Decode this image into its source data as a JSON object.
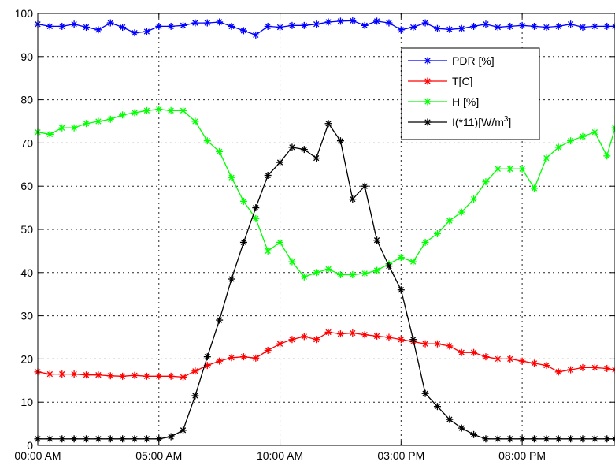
{
  "chart_data": {
    "type": "line",
    "title": "",
    "xlabel": "",
    "ylabel": "",
    "ylim": [
      0,
      100
    ],
    "yticks": [
      0,
      10,
      20,
      30,
      40,
      50,
      60,
      70,
      80,
      90,
      100
    ],
    "ytick_labels": [
      "0",
      "10",
      "20",
      "30",
      "40",
      "50",
      "60",
      "70",
      "80",
      "90",
      "100"
    ],
    "xlim": [
      0,
      1430
    ],
    "xticks": [
      0,
      300,
      600,
      900,
      1200
    ],
    "xtick_labels": [
      "00:00 AM",
      "05:00 AM",
      "10:00 AM",
      "03:00 PM",
      "08:00 PM"
    ],
    "grid": true,
    "legend_position": "upper-right",
    "series": [
      {
        "name": "PDR [%]",
        "color": "#0000ff",
        "marker": "*",
        "x": [
          0,
          30,
          60,
          90,
          120,
          150,
          180,
          210,
          240,
          270,
          300,
          330,
          360,
          390,
          420,
          450,
          480,
          510,
          540,
          570,
          600,
          630,
          660,
          690,
          720,
          750,
          780,
          810,
          840,
          870,
          900,
          930,
          960,
          990,
          1020,
          1050,
          1080,
          1110,
          1140,
          1170,
          1200,
          1230,
          1260,
          1290,
          1320,
          1350,
          1380,
          1410,
          1430
        ],
        "values": [
          97.5,
          97,
          97,
          97.5,
          96.8,
          96.2,
          97.8,
          96.8,
          95.5,
          95.8,
          97,
          97,
          97.2,
          97.8,
          97.8,
          98,
          97,
          96,
          95,
          97,
          96.8,
          97.2,
          97.2,
          97.5,
          98,
          98.2,
          98.3,
          97.2,
          98.2,
          97.8,
          96.2,
          96.8,
          97.8,
          96.5,
          96.3,
          96.5,
          97,
          97.5,
          96.8,
          97,
          97.2,
          97,
          96.8,
          97,
          97.5,
          96.8,
          97,
          97,
          97
        ],
        "x_note": "minutes since midnight"
      },
      {
        "name": "T[C]",
        "color": "#ff0000",
        "marker": "*",
        "x": [
          0,
          30,
          60,
          90,
          120,
          150,
          180,
          210,
          240,
          270,
          300,
          330,
          360,
          390,
          420,
          450,
          480,
          510,
          540,
          570,
          600,
          630,
          660,
          690,
          720,
          750,
          780,
          810,
          840,
          870,
          900,
          930,
          960,
          990,
          1020,
          1050,
          1080,
          1110,
          1140,
          1170,
          1200,
          1230,
          1260,
          1290,
          1320,
          1350,
          1380,
          1410,
          1430
        ],
        "values": [
          17,
          16.5,
          16.5,
          16.5,
          16.3,
          16.3,
          16.1,
          16,
          16.2,
          16,
          16,
          16,
          15.8,
          17.2,
          18.5,
          19.5,
          20.3,
          20.5,
          20.2,
          22,
          23.5,
          24.5,
          25.2,
          24.5,
          26.2,
          25.8,
          26,
          25.6,
          25.3,
          25,
          24.5,
          24,
          23.5,
          23.5,
          23,
          21.5,
          21.5,
          20.5,
          20,
          20,
          19.5,
          19,
          18.5,
          17,
          17.5,
          18,
          18,
          17.8,
          17.5
        ]
      },
      {
        "name": "H [%]",
        "color": "#00ff00",
        "marker": "*",
        "x": [
          0,
          30,
          60,
          90,
          120,
          150,
          180,
          210,
          240,
          270,
          300,
          330,
          360,
          390,
          420,
          450,
          480,
          510,
          540,
          570,
          600,
          630,
          660,
          690,
          720,
          750,
          780,
          810,
          840,
          870,
          900,
          930,
          960,
          990,
          1020,
          1050,
          1080,
          1110,
          1140,
          1170,
          1200,
          1230,
          1260,
          1290,
          1320,
          1350,
          1380,
          1410,
          1430
        ],
        "values": [
          72.5,
          72,
          73.5,
          73.5,
          74.5,
          75,
          75.5,
          76.5,
          77,
          77.5,
          77.8,
          77.5,
          77.5,
          75,
          70.5,
          68,
          62,
          56.5,
          52.5,
          45,
          47,
          42.5,
          39,
          40,
          40.8,
          39.5,
          39.5,
          39.8,
          40.5,
          42,
          43.5,
          42.5,
          47,
          49,
          52,
          54,
          57,
          61,
          64,
          64,
          64,
          59.5,
          66.5,
          69,
          70.5,
          71.5,
          72.5,
          67,
          73.5
        ]
      },
      {
        "name": "I(*11)[W/m",
        "name_sup": "3",
        "name_suffix": "]",
        "color": "#000000",
        "marker": "*",
        "x": [
          0,
          30,
          60,
          90,
          120,
          150,
          180,
          210,
          240,
          270,
          300,
          330,
          360,
          390,
          420,
          450,
          480,
          510,
          540,
          570,
          600,
          630,
          660,
          690,
          720,
          750,
          780,
          810,
          840,
          870,
          900,
          930,
          960,
          990,
          1020,
          1050,
          1080,
          1110,
          1140,
          1170,
          1200,
          1230,
          1260,
          1290,
          1320,
          1350,
          1380,
          1410,
          1430
        ],
        "values": [
          1.5,
          1.5,
          1.5,
          1.5,
          1.5,
          1.5,
          1.5,
          1.5,
          1.5,
          1.5,
          1.5,
          2,
          3.5,
          11.5,
          20.5,
          29,
          38.5,
          47,
          55,
          62.5,
          65.5,
          69,
          68.5,
          66.5,
          74.5,
          70.5,
          57,
          60,
          47.5,
          41.5,
          36,
          24.5,
          12,
          9,
          6,
          4,
          2.5,
          1.5,
          1.5,
          1.5,
          1.5,
          1.5,
          1.5,
          1.5,
          1.5,
          1.5,
          1.5,
          1.5,
          1.5
        ]
      }
    ]
  }
}
